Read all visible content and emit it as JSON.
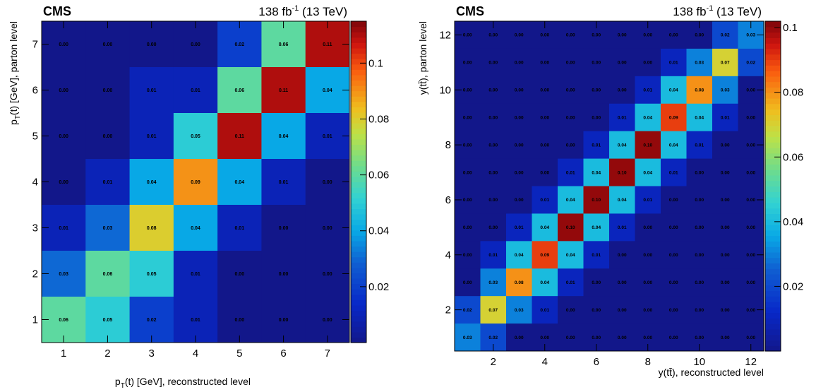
{
  "chart_data": [
    {
      "type": "heatmap",
      "experiment": "CMS",
      "luminosity": "138 fb",
      "lumi_superscript": "-1",
      "energy": "(13 TeV)",
      "xlabel_main": "p",
      "xlabel_sub": "T",
      "xlabel_rest": "(t) [GeV], reconstructed level",
      "ylabel_main": "p",
      "ylabel_sub": "T",
      "ylabel_rest": "(t) [GeV], parton level",
      "x_range": [
        0.5,
        7.5
      ],
      "y_range": [
        0.5,
        7.5
      ],
      "x_ticks": [
        1,
        2,
        3,
        4,
        5,
        6,
        7
      ],
      "y_ticks": [
        1,
        2,
        3,
        4,
        5,
        6,
        7
      ],
      "z_range": [
        0.0,
        0.115
      ],
      "z_ticks": [
        0.02,
        0.04,
        0.06,
        0.08,
        0.1
      ],
      "z_tick_labels": [
        "0.02",
        "0.04",
        "0.06",
        "0.08",
        "0.1"
      ],
      "matrix_rows_top_to_bottom": [
        [
          "0.00",
          "0.00",
          "0.00",
          "0.00",
          "0.02",
          "0.06",
          "0.11"
        ],
        [
          "0.00",
          "0.00",
          "0.01",
          "0.01",
          "0.06",
          "0.11",
          "0.04"
        ],
        [
          "0.00",
          "0.00",
          "0.01",
          "0.05",
          "0.11",
          "0.04",
          "0.01"
        ],
        [
          "0.00",
          "0.01",
          "0.04",
          "0.09",
          "0.04",
          "0.01",
          "0.00"
        ],
        [
          "0.01",
          "0.03",
          "0.08",
          "0.04",
          "0.01",
          "0.00",
          "0.00"
        ],
        [
          "0.03",
          "0.06",
          "0.05",
          "0.01",
          "0.00",
          "0.00",
          "0.00"
        ],
        [
          "0.06",
          "0.05",
          "0.02",
          "0.01",
          "0.00",
          "0.00",
          "0.00"
        ]
      ]
    },
    {
      "type": "heatmap",
      "experiment": "CMS",
      "luminosity": "138 fb",
      "lumi_superscript": "-1",
      "energy": "(13 TeV)",
      "xlabel_main": "y(tt̄), reconstructed level",
      "ylabel_main": "y(tt̄), parton level",
      "x_range": [
        0.5,
        12.5
      ],
      "y_range": [
        0.5,
        12.5
      ],
      "x_ticks": [
        2,
        4,
        6,
        8,
        10,
        12
      ],
      "y_ticks": [
        2,
        4,
        6,
        8,
        10,
        12
      ],
      "z_range": [
        0.0,
        0.102
      ],
      "z_ticks": [
        0.02,
        0.04,
        0.06,
        0.08,
        0.1
      ],
      "z_tick_labels": [
        "0.02",
        "0.04",
        "0.06",
        "0.08",
        "0.1"
      ],
      "matrix_rows_top_to_bottom": [
        [
          "0.00",
          "0.00",
          "0.00",
          "0.00",
          "0.00",
          "0.00",
          "0.00",
          "0.00",
          "0.00",
          "0.00",
          "0.02",
          "0.03"
        ],
        [
          "0.00",
          "0.00",
          "0.00",
          "0.00",
          "0.00",
          "0.00",
          "0.00",
          "0.00",
          "0.01",
          "0.03",
          "0.07",
          "0.02"
        ],
        [
          "0.00",
          "0.00",
          "0.00",
          "0.00",
          "0.00",
          "0.00",
          "0.00",
          "0.01",
          "0.04",
          "0.08",
          "0.03",
          "0.00"
        ],
        [
          "0.00",
          "0.00",
          "0.00",
          "0.00",
          "0.00",
          "0.00",
          "0.01",
          "0.04",
          "0.09",
          "0.04",
          "0.01",
          "0.00"
        ],
        [
          "0.00",
          "0.00",
          "0.00",
          "0.00",
          "0.00",
          "0.01",
          "0.04",
          "0.10",
          "0.04",
          "0.01",
          "0.00",
          "0.00"
        ],
        [
          "0.00",
          "0.00",
          "0.00",
          "0.00",
          "0.01",
          "0.04",
          "0.10",
          "0.04",
          "0.01",
          "0.00",
          "0.00",
          "0.00"
        ],
        [
          "0.00",
          "0.00",
          "0.00",
          "0.01",
          "0.04",
          "0.10",
          "0.04",
          "0.01",
          "0.00",
          "0.00",
          "0.00",
          "0.00"
        ],
        [
          "0.00",
          "0.00",
          "0.01",
          "0.04",
          "0.10",
          "0.04",
          "0.01",
          "0.00",
          "0.00",
          "0.00",
          "0.00",
          "0.00"
        ],
        [
          "0.00",
          "0.01",
          "0.04",
          "0.09",
          "0.04",
          "0.01",
          "0.00",
          "0.00",
          "0.00",
          "0.00",
          "0.00",
          "0.00"
        ],
        [
          "0.00",
          "0.03",
          "0.08",
          "0.04",
          "0.01",
          "0.00",
          "0.00",
          "0.00",
          "0.00",
          "0.00",
          "0.00",
          "0.00"
        ],
        [
          "0.02",
          "0.07",
          "0.03",
          "0.01",
          "0.00",
          "0.00",
          "0.00",
          "0.00",
          "0.00",
          "0.00",
          "0.00",
          "0.00"
        ],
        [
          "0.03",
          "0.02",
          "0.00",
          "0.00",
          "0.00",
          "0.00",
          "0.00",
          "0.00",
          "0.00",
          "0.00",
          "0.00",
          "0.00"
        ]
      ]
    }
  ]
}
